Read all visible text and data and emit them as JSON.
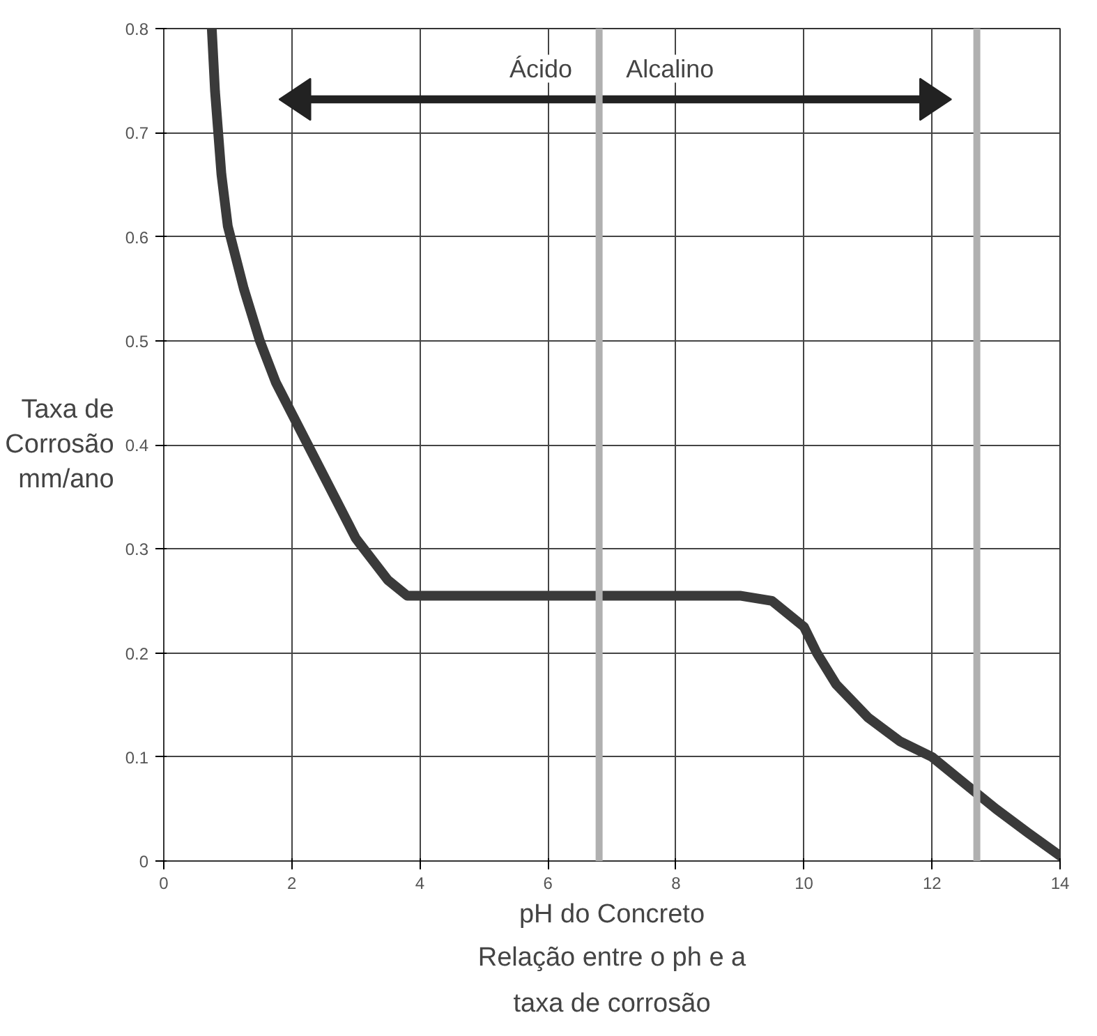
{
  "chart_data": {
    "type": "line",
    "xlabel": "pH do Concreto",
    "ylabel": "Taxa de Corrosão mm/ano",
    "annotations": [
      "Ácido",
      "Alcalino",
      "Relação entre o ph e a taxa de corrosão"
    ],
    "x": [
      0.75,
      0.8,
      0.9,
      1,
      1.25,
      1.5,
      1.75,
      2,
      2.5,
      3,
      3.5,
      3.8,
      4,
      5,
      6,
      7,
      8,
      9,
      9.5,
      10,
      10.2,
      10.5,
      11,
      11.5,
      12,
      12.5,
      13,
      13.5,
      14
    ],
    "series": [
      {
        "color": "#3a3a3a",
        "values": [
          0.8,
          0.74,
          0.66,
          0.61,
          0.55,
          0.5,
          0.46,
          0.43,
          0.37,
          0.31,
          0.27,
          0.255,
          0.255,
          0.255,
          0.255,
          0.255,
          0.255,
          0.255,
          0.25,
          0.225,
          0.2,
          0.17,
          0.138,
          0.115,
          0.1,
          0.075,
          0.05,
          0.027,
          0.005
        ]
      }
    ],
    "xlim": [
      0,
      14
    ],
    "ylim": [
      0,
      0.8
    ],
    "xticks": [
      0,
      2,
      4,
      6,
      8,
      10,
      12,
      14
    ],
    "yticks": [
      0,
      0.1,
      0.2,
      0.3,
      0.4,
      0.5,
      0.6,
      0.7,
      0.8
    ],
    "ref_lines": [
      {
        "axis": "x",
        "value": 6.8,
        "color": "#b0b0b0"
      },
      {
        "axis": "x",
        "value": 12.7,
        "color": "#b0b0b0"
      }
    ],
    "grid": true,
    "marker": "none",
    "line_style": "solid"
  }
}
